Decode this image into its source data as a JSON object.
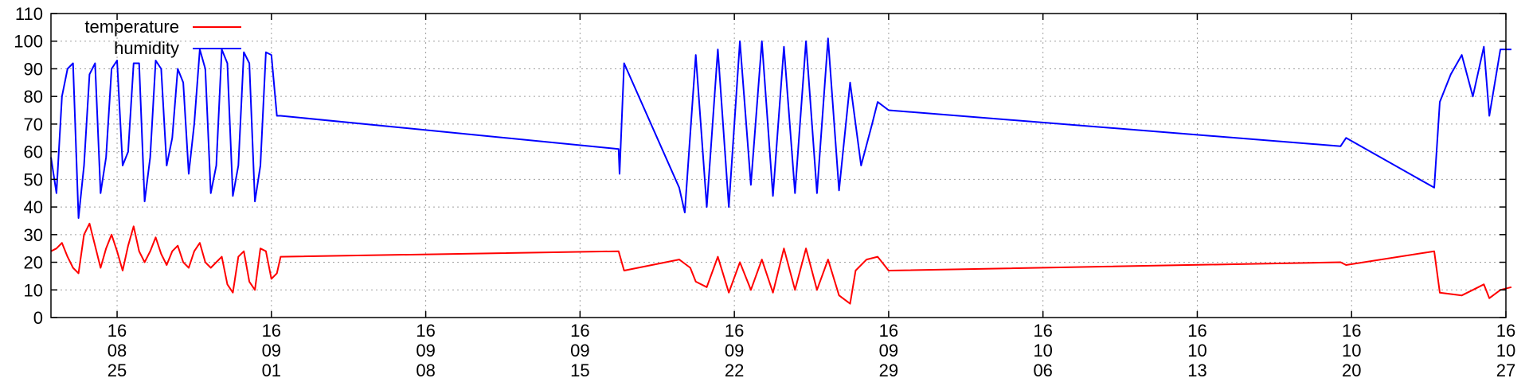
{
  "chart_data": {
    "type": "line",
    "title": "",
    "xlabel": "",
    "ylabel": "",
    "ylim": [
      0,
      110
    ],
    "yticks": [
      0,
      10,
      20,
      30,
      40,
      50,
      60,
      70,
      80,
      90,
      100,
      110
    ],
    "xlim": [
      "2016-08-22",
      "2016-10-27"
    ],
    "xticks": [
      {
        "date": "2016-08-25",
        "lines": [
          "16",
          "08",
          "25"
        ]
      },
      {
        "date": "2016-09-01",
        "lines": [
          "16",
          "09",
          "01"
        ]
      },
      {
        "date": "2016-09-08",
        "lines": [
          "16",
          "09",
          "08"
        ]
      },
      {
        "date": "2016-09-15",
        "lines": [
          "16",
          "09",
          "15"
        ]
      },
      {
        "date": "2016-09-22",
        "lines": [
          "16",
          "09",
          "22"
        ]
      },
      {
        "date": "2016-09-29",
        "lines": [
          "16",
          "09",
          "29"
        ]
      },
      {
        "date": "2016-10-06",
        "lines": [
          "16",
          "10",
          "06"
        ]
      },
      {
        "date": "2016-10-13",
        "lines": [
          "16",
          "10",
          "13"
        ]
      },
      {
        "date": "2016-10-20",
        "lines": [
          "16",
          "10",
          "20"
        ]
      },
      {
        "date": "2016-10-27",
        "lines": [
          "16",
          "10",
          "27"
        ]
      }
    ],
    "grid": true,
    "legend_position": "top-left",
    "series": [
      {
        "name": "temperature",
        "color": "#ff0000",
        "points": [
          [
            "2016-08-22 00:00",
            24
          ],
          [
            "2016-08-22 06:00",
            25
          ],
          [
            "2016-08-22 12:00",
            27
          ],
          [
            "2016-08-22 18:00",
            22
          ],
          [
            "2016-08-23 00:00",
            18
          ],
          [
            "2016-08-23 06:00",
            16
          ],
          [
            "2016-08-23 12:00",
            30
          ],
          [
            "2016-08-23 18:00",
            34
          ],
          [
            "2016-08-24 00:00",
            26
          ],
          [
            "2016-08-24 06:00",
            18
          ],
          [
            "2016-08-24 12:00",
            25
          ],
          [
            "2016-08-24 18:00",
            30
          ],
          [
            "2016-08-25 00:00",
            24
          ],
          [
            "2016-08-25 06:00",
            17
          ],
          [
            "2016-08-25 12:00",
            26
          ],
          [
            "2016-08-25 18:00",
            33
          ],
          [
            "2016-08-26 00:00",
            24
          ],
          [
            "2016-08-26 06:00",
            20
          ],
          [
            "2016-08-26 12:00",
            24
          ],
          [
            "2016-08-26 18:00",
            29
          ],
          [
            "2016-08-27 00:00",
            23
          ],
          [
            "2016-08-27 06:00",
            19
          ],
          [
            "2016-08-27 12:00",
            24
          ],
          [
            "2016-08-27 18:00",
            26
          ],
          [
            "2016-08-28 00:00",
            20
          ],
          [
            "2016-08-28 06:00",
            18
          ],
          [
            "2016-08-28 12:00",
            24
          ],
          [
            "2016-08-28 18:00",
            27
          ],
          [
            "2016-08-29 00:00",
            20
          ],
          [
            "2016-08-29 06:00",
            18
          ],
          [
            "2016-08-29 12:00",
            20
          ],
          [
            "2016-08-29 18:00",
            22
          ],
          [
            "2016-08-30 00:00",
            12
          ],
          [
            "2016-08-30 06:00",
            9
          ],
          [
            "2016-08-30 12:00",
            22
          ],
          [
            "2016-08-30 18:00",
            24
          ],
          [
            "2016-08-31 00:00",
            13
          ],
          [
            "2016-08-31 06:00",
            10
          ],
          [
            "2016-08-31 12:00",
            25
          ],
          [
            "2016-08-31 18:00",
            24
          ],
          [
            "2016-09-01 00:00",
            14
          ],
          [
            "2016-09-01 06:00",
            16
          ],
          [
            "2016-09-01 10:00",
            22
          ],
          [
            "2016-09-16 18:00",
            24
          ],
          [
            "2016-09-17 00:00",
            17
          ],
          [
            "2016-09-19 12:00",
            21
          ],
          [
            "2016-09-20 00:00",
            18
          ],
          [
            "2016-09-20 06:00",
            13
          ],
          [
            "2016-09-20 18:00",
            11
          ],
          [
            "2016-09-21 06:00",
            22
          ],
          [
            "2016-09-21 18:00",
            9
          ],
          [
            "2016-09-22 06:00",
            20
          ],
          [
            "2016-09-22 18:00",
            10
          ],
          [
            "2016-09-23 06:00",
            21
          ],
          [
            "2016-09-23 18:00",
            9
          ],
          [
            "2016-09-24 06:00",
            25
          ],
          [
            "2016-09-24 18:00",
            10
          ],
          [
            "2016-09-25 06:00",
            25
          ],
          [
            "2016-09-25 18:00",
            10
          ],
          [
            "2016-09-26 06:00",
            21
          ],
          [
            "2016-09-26 18:00",
            8
          ],
          [
            "2016-09-27 06:00",
            5
          ],
          [
            "2016-09-27 12:00",
            17
          ],
          [
            "2016-09-28 00:00",
            21
          ],
          [
            "2016-09-28 12:00",
            22
          ],
          [
            "2016-09-29 00:00",
            17
          ],
          [
            "2016-10-19 12:00",
            20
          ],
          [
            "2016-10-19 18:00",
            19
          ],
          [
            "2016-10-23 18:00",
            24
          ],
          [
            "2016-10-24 00:00",
            9
          ],
          [
            "2016-10-25 00:00",
            8
          ],
          [
            "2016-10-25 12:00",
            10
          ],
          [
            "2016-10-26 00:00",
            12
          ],
          [
            "2016-10-26 06:00",
            7
          ],
          [
            "2016-10-26 18:00",
            10
          ],
          [
            "2016-10-27 06:00",
            11
          ]
        ]
      },
      {
        "name": "humidity",
        "color": "#0000ff",
        "points": [
          [
            "2016-08-22 00:00",
            58
          ],
          [
            "2016-08-22 06:00",
            45
          ],
          [
            "2016-08-22 12:00",
            80
          ],
          [
            "2016-08-22 18:00",
            90
          ],
          [
            "2016-08-23 00:00",
            92
          ],
          [
            "2016-08-23 06:00",
            36
          ],
          [
            "2016-08-23 12:00",
            55
          ],
          [
            "2016-08-23 18:00",
            88
          ],
          [
            "2016-08-24 00:00",
            92
          ],
          [
            "2016-08-24 06:00",
            45
          ],
          [
            "2016-08-24 12:00",
            58
          ],
          [
            "2016-08-24 18:00",
            90
          ],
          [
            "2016-08-25 00:00",
            93
          ],
          [
            "2016-08-25 06:00",
            55
          ],
          [
            "2016-08-25 12:00",
            60
          ],
          [
            "2016-08-25 18:00",
            92
          ],
          [
            "2016-08-26 00:00",
            92
          ],
          [
            "2016-08-26 06:00",
            42
          ],
          [
            "2016-08-26 12:00",
            58
          ],
          [
            "2016-08-26 18:00",
            93
          ],
          [
            "2016-08-27 00:00",
            90
          ],
          [
            "2016-08-27 06:00",
            55
          ],
          [
            "2016-08-27 12:00",
            65
          ],
          [
            "2016-08-27 18:00",
            90
          ],
          [
            "2016-08-28 00:00",
            85
          ],
          [
            "2016-08-28 06:00",
            52
          ],
          [
            "2016-08-28 12:00",
            70
          ],
          [
            "2016-08-28 18:00",
            97
          ],
          [
            "2016-08-29 00:00",
            90
          ],
          [
            "2016-08-29 06:00",
            45
          ],
          [
            "2016-08-29 12:00",
            55
          ],
          [
            "2016-08-29 18:00",
            97
          ],
          [
            "2016-08-30 00:00",
            92
          ],
          [
            "2016-08-30 06:00",
            44
          ],
          [
            "2016-08-30 12:00",
            55
          ],
          [
            "2016-08-30 18:00",
            96
          ],
          [
            "2016-08-31 00:00",
            92
          ],
          [
            "2016-08-31 06:00",
            42
          ],
          [
            "2016-08-31 12:00",
            55
          ],
          [
            "2016-08-31 18:00",
            96
          ],
          [
            "2016-09-01 00:00",
            95
          ],
          [
            "2016-09-01 06:00",
            73
          ],
          [
            "2016-09-01 10:00",
            73
          ],
          [
            "2016-09-16 18:00",
            61
          ],
          [
            "2016-09-16 19:00",
            52
          ],
          [
            "2016-09-17 00:00",
            92
          ],
          [
            "2016-09-19 12:00",
            47
          ],
          [
            "2016-09-19 18:00",
            38
          ],
          [
            "2016-09-20 06:00",
            95
          ],
          [
            "2016-09-20 18:00",
            40
          ],
          [
            "2016-09-21 06:00",
            97
          ],
          [
            "2016-09-21 18:00",
            40
          ],
          [
            "2016-09-22 06:00",
            100
          ],
          [
            "2016-09-22 18:00",
            48
          ],
          [
            "2016-09-23 06:00",
            100
          ],
          [
            "2016-09-23 18:00",
            44
          ],
          [
            "2016-09-24 06:00",
            98
          ],
          [
            "2016-09-24 18:00",
            45
          ],
          [
            "2016-09-25 06:00",
            100
          ],
          [
            "2016-09-25 18:00",
            45
          ],
          [
            "2016-09-26 06:00",
            101
          ],
          [
            "2016-09-26 18:00",
            46
          ],
          [
            "2016-09-27 06:00",
            85
          ],
          [
            "2016-09-27 18:00",
            55
          ],
          [
            "2016-09-28 06:00",
            70
          ],
          [
            "2016-09-28 12:00",
            78
          ],
          [
            "2016-09-29 00:00",
            75
          ],
          [
            "2016-10-19 12:00",
            62
          ],
          [
            "2016-10-19 18:00",
            65
          ],
          [
            "2016-10-23 18:00",
            47
          ],
          [
            "2016-10-24 00:00",
            78
          ],
          [
            "2016-10-24 12:00",
            88
          ],
          [
            "2016-10-25 00:00",
            95
          ],
          [
            "2016-10-25 12:00",
            80
          ],
          [
            "2016-10-26 00:00",
            98
          ],
          [
            "2016-10-26 06:00",
            73
          ],
          [
            "2016-10-26 18:00",
            97
          ],
          [
            "2016-10-27 06:00",
            97
          ]
        ]
      }
    ]
  }
}
